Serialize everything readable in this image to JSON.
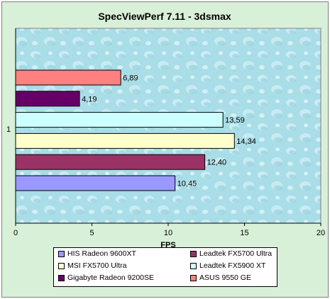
{
  "chart_data": {
    "type": "bar",
    "orientation": "horizontal",
    "title": "SpecViewPerf 7.11 - 3dsmax",
    "xlabel": "FPS",
    "ylabel": "",
    "xlim": [
      0,
      20
    ],
    "x_ticks": [
      "0",
      "5",
      "10",
      "15",
      "20"
    ],
    "categories": [
      "1"
    ],
    "series": [
      {
        "name": "HIS Radeon 9600XT",
        "values": [
          10.45
        ],
        "label": "10,45",
        "color": "#9999ff"
      },
      {
        "name": "Leadtek FX5700 Ultra",
        "values": [
          12.4
        ],
        "label": "12,40",
        "color": "#993366"
      },
      {
        "name": "MSI FX5700 Ultra",
        "values": [
          14.34
        ],
        "label": "14,34",
        "color": "#ffffcc"
      },
      {
        "name": "Leadtek FX5900 XT",
        "values": [
          13.59
        ],
        "label": "13,59",
        "color": "#ccffff"
      },
      {
        "name": "Gigabyte Radeon 9200SE",
        "values": [
          4.19
        ],
        "label": "4,19",
        "color": "#660066"
      },
      {
        "name": "ASUS 9550 GE",
        "values": [
          6.89
        ],
        "label": "6,89",
        "color": "#ff8080"
      }
    ],
    "grid": false,
    "legend_position": "bottom",
    "plot_background": "#a8dde6",
    "chart_background": "#d8f0d8"
  }
}
